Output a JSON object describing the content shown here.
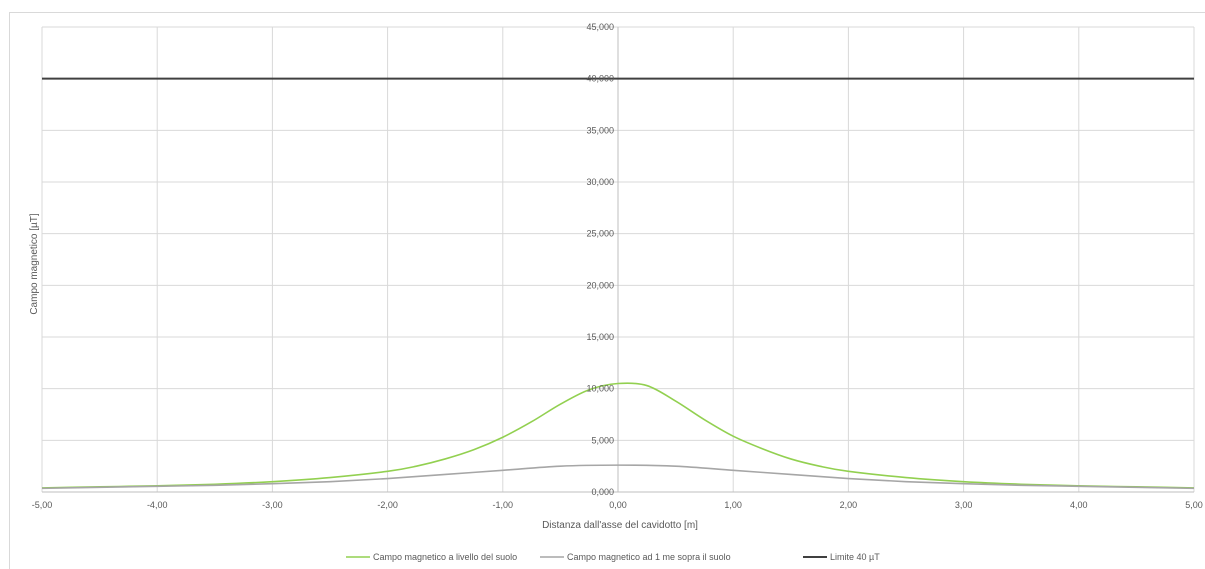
{
  "chart_data": {
    "type": "line",
    "title": "",
    "xlabel": "Distanza dall'asse del cavidotto [m]",
    "ylabel": "Campo magnetico [µT]",
    "xlim": [
      -5,
      5
    ],
    "ylim": [
      0,
      45
    ],
    "x_ticks": [
      -5,
      -4,
      -3,
      -2,
      -1,
      0,
      1,
      2,
      3,
      4,
      5
    ],
    "x_tick_labels": [
      "-5,00",
      "-4,00",
      "-3,00",
      "-2,00",
      "-1,00",
      "0,00",
      "1,00",
      "2,00",
      "3,00",
      "4,00",
      "5,00"
    ],
    "y_ticks": [
      0,
      5,
      10,
      15,
      20,
      25,
      30,
      35,
      40,
      45
    ],
    "y_tick_labels": [
      "0,000",
      "5,000",
      "10,000",
      "15,000",
      "20,000",
      "25,000",
      "30,000",
      "35,000",
      "40,000",
      "45,000"
    ],
    "grid": true,
    "legend_position": "bottom",
    "series": [
      {
        "name": "Campo magnetico a livello del suolo",
        "color": "#92d050",
        "x": [
          -5,
          -4.5,
          -4,
          -3.5,
          -3,
          -2.5,
          -2,
          -1.75,
          -1.5,
          -1.25,
          -1,
          -0.75,
          -0.5,
          -0.25,
          0,
          0.25,
          0.5,
          0.75,
          1,
          1.25,
          1.5,
          1.75,
          2,
          2.5,
          3,
          3.5,
          4,
          4.5,
          5
        ],
        "y": [
          0.4,
          0.5,
          0.6,
          0.75,
          1.0,
          1.4,
          2.0,
          2.5,
          3.2,
          4.1,
          5.3,
          6.8,
          8.5,
          9.9,
          10.5,
          10.3,
          8.8,
          7.0,
          5.4,
          4.2,
          3.2,
          2.5,
          2.0,
          1.4,
          1.0,
          0.75,
          0.6,
          0.5,
          0.4
        ]
      },
      {
        "name": "Campo magnetico ad 1 me sopra il suolo",
        "color": "#a6a6a6",
        "x": [
          -5,
          -4.5,
          -4,
          -3.5,
          -3,
          -2.5,
          -2,
          -1.5,
          -1,
          -0.5,
          0,
          0.5,
          1,
          1.5,
          2,
          2.5,
          3,
          3.5,
          4,
          4.5,
          5
        ],
        "y": [
          0.35,
          0.45,
          0.55,
          0.65,
          0.8,
          1.0,
          1.3,
          1.7,
          2.1,
          2.5,
          2.6,
          2.5,
          2.1,
          1.7,
          1.3,
          1.0,
          0.8,
          0.65,
          0.55,
          0.45,
          0.35
        ]
      },
      {
        "name": "Limite 40 µT",
        "color": "#404040",
        "x": [
          -5,
          5
        ],
        "y": [
          40,
          40
        ]
      }
    ]
  }
}
